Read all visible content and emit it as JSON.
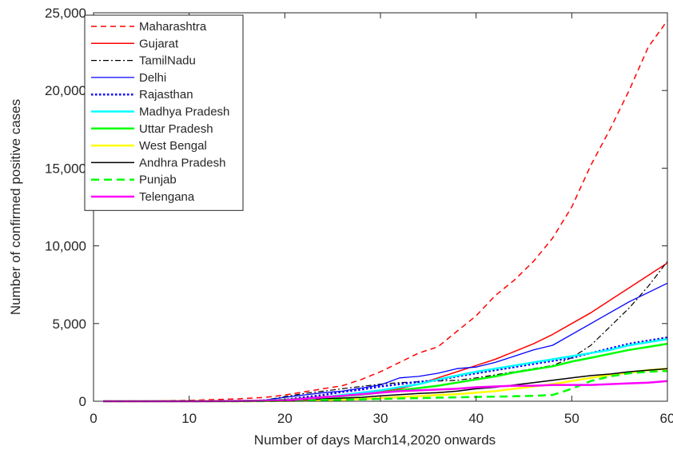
{
  "chart_data": {
    "type": "line",
    "title": "",
    "xlabel": "Number of days March14,2020 onwards",
    "ylabel": "Number of confirmed positive cases",
    "xlim": [
      0,
      60
    ],
    "ylim": [
      0,
      25000
    ],
    "xticks": [
      0,
      10,
      20,
      30,
      40,
      50,
      60
    ],
    "xtick_labels": [
      "0",
      "10",
      "20",
      "30",
      "40",
      "50",
      "60"
    ],
    "yticks": [
      0,
      5000,
      10000,
      15000,
      20000,
      25000
    ],
    "ytick_labels": [
      "0",
      "5,000",
      "10,000",
      "15,000",
      "20,000",
      "25,000"
    ],
    "grid": false,
    "legend_position": "top-left",
    "x": [
      1,
      5,
      10,
      15,
      18,
      20,
      22,
      24,
      26,
      28,
      30,
      32,
      34,
      36,
      38,
      40,
      42,
      44,
      46,
      48,
      50,
      52,
      54,
      56,
      58,
      60
    ],
    "series": [
      {
        "name": "Maharashtra",
        "color": "#ff0000",
        "dash": "dashed",
        "width": 1.5,
        "values": [
          0,
          20,
          60,
          150,
          250,
          400,
          600,
          800,
          1000,
          1400,
          1900,
          2500,
          3100,
          3500,
          4500,
          5500,
          6800,
          7800,
          9000,
          10500,
          12500,
          15200,
          17500,
          20000,
          22800,
          24500
        ]
      },
      {
        "name": "Gujarat",
        "color": "#ff0000",
        "dash": "solid",
        "width": 1.5,
        "values": [
          0,
          0,
          10,
          30,
          60,
          120,
          200,
          300,
          400,
          500,
          650,
          800,
          1100,
          1500,
          1900,
          2300,
          2700,
          3200,
          3700,
          4300,
          5000,
          5700,
          6500,
          7300,
          8100,
          8900
        ]
      },
      {
        "name": "TamilNadu",
        "color": "#000000",
        "dash": "dashdot",
        "width": 1.2,
        "values": [
          0,
          0,
          10,
          30,
          80,
          300,
          500,
          650,
          800,
          950,
          1100,
          1200,
          1250,
          1300,
          1350,
          1500,
          1700,
          1900,
          2100,
          2300,
          2800,
          3600,
          4800,
          6000,
          7400,
          9000
        ]
      },
      {
        "name": "Delhi",
        "color": "#0000ff",
        "dash": "solid",
        "width": 1.3,
        "values": [
          0,
          0,
          10,
          30,
          80,
          250,
          400,
          550,
          650,
          850,
          1050,
          1500,
          1600,
          1800,
          2100,
          2200,
          2500,
          2900,
          3300,
          3600,
          4300,
          5000,
          5700,
          6400,
          7000,
          7600
        ]
      },
      {
        "name": "Rajasthan",
        "color": "#0000ff",
        "dash": "dotted",
        "width": 2.5,
        "values": [
          0,
          0,
          10,
          20,
          50,
          100,
          250,
          400,
          600,
          750,
          950,
          1100,
          1250,
          1350,
          1600,
          1800,
          2000,
          2200,
          2400,
          2600,
          2800,
          3100,
          3400,
          3700,
          3900,
          4100
        ]
      },
      {
        "name": "Madhya Pradesh",
        "color": "#00ffff",
        "dash": "solid",
        "width": 2.5,
        "values": [
          0,
          0,
          0,
          10,
          30,
          80,
          150,
          250,
          400,
          550,
          700,
          900,
          1100,
          1400,
          1650,
          1900,
          2100,
          2300,
          2500,
          2700,
          2900,
          3100,
          3300,
          3600,
          3800,
          4000
        ]
      },
      {
        "name": "Uttar Pradesh",
        "color": "#00ff00",
        "dash": "solid",
        "width": 2.5,
        "values": [
          0,
          0,
          10,
          20,
          40,
          90,
          150,
          220,
          320,
          420,
          550,
          700,
          850,
          1000,
          1200,
          1400,
          1600,
          1850,
          2050,
          2250,
          2550,
          2800,
          3050,
          3300,
          3500,
          3700
        ]
      },
      {
        "name": "West Bengal",
        "color": "#ffff00",
        "dash": "solid",
        "width": 2.5,
        "values": [
          0,
          0,
          0,
          0,
          10,
          20,
          40,
          70,
          100,
          140,
          200,
          270,
          330,
          400,
          450,
          550,
          650,
          800,
          950,
          1100,
          1300,
          1500,
          1700,
          1850,
          2000,
          2100
        ]
      },
      {
        "name": "Andhra Pradesh",
        "color": "#000000",
        "dash": "solid",
        "width": 1.5,
        "values": [
          0,
          0,
          0,
          0,
          10,
          40,
          100,
          150,
          200,
          250,
          350,
          420,
          500,
          550,
          650,
          800,
          900,
          1050,
          1200,
          1350,
          1500,
          1650,
          1750,
          1900,
          2000,
          2100
        ]
      },
      {
        "name": "Punjab",
        "color": "#00ff00",
        "dash": "longdash",
        "width": 2.5,
        "values": [
          0,
          0,
          0,
          0,
          10,
          30,
          50,
          80,
          100,
          120,
          150,
          180,
          200,
          230,
          250,
          280,
          300,
          320,
          350,
          400,
          800,
          1300,
          1600,
          1800,
          1900,
          1950
        ]
      },
      {
        "name": "Telengana",
        "color": "#ff00ff",
        "dash": "solid",
        "width": 2.5,
        "values": [
          0,
          0,
          0,
          10,
          30,
          60,
          150,
          250,
          350,
          450,
          550,
          650,
          700,
          750,
          800,
          900,
          950,
          1000,
          1000,
          1050,
          1050,
          1050,
          1100,
          1150,
          1200,
          1300
        ]
      }
    ]
  }
}
